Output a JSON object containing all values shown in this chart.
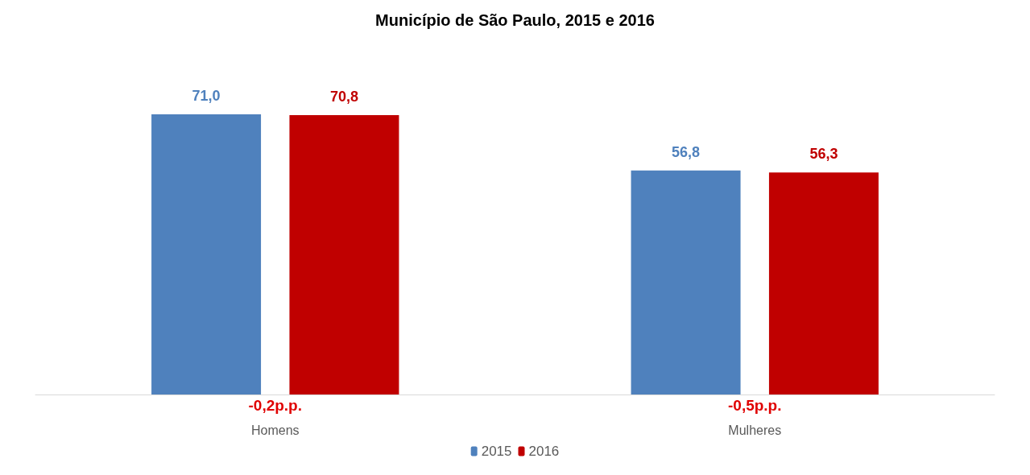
{
  "chart_data": {
    "type": "bar",
    "title": "Município de São Paulo, 2015 e 2016",
    "categories": [
      "Homens",
      "Mulheres"
    ],
    "series": [
      {
        "name": "2015",
        "color": "#4f81bd",
        "values": [
          71.0,
          56.8
        ],
        "value_labels": [
          "71,0",
          "56,8"
        ]
      },
      {
        "name": "2016",
        "color": "#c00000",
        "values": [
          70.8,
          56.3
        ],
        "value_labels": [
          "70,8",
          "56,3"
        ]
      }
    ],
    "legend": "bottom",
    "annotations": [
      "-0,2p.p.",
      "-0,5p.p."
    ]
  }
}
